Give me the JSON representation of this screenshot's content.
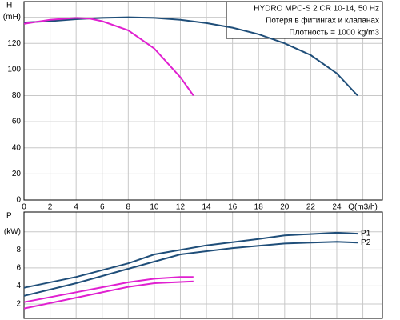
{
  "chart_data": [
    {
      "type": "line",
      "title": "HYDRO MPC-S 2 CR 10-14, 50 Hz",
      "annotations": [
        "Потеря в фитингах и клапанах",
        "Плотность = 1000 kg/m3"
      ],
      "ylabel": "H",
      "xlim": [
        0,
        27.5
      ],
      "ylim": [
        0,
        152
      ],
      "grid": true,
      "xticks": [
        0,
        2,
        4,
        6,
        8,
        10,
        12,
        14,
        16,
        18,
        20,
        22,
        24,
        {
          "value": 26,
          "label": "Q(m3/h)"
        }
      ],
      "yticks": [
        0,
        20,
        40,
        60,
        80,
        100,
        120,
        {
          "value": 140,
          "label": "(mH)"
        }
      ],
      "series": [
        {
          "color": "#1f4e79",
          "x": [
            0,
            2,
            4,
            6,
            8,
            10,
            12,
            14,
            16,
            18,
            20,
            22,
            24,
            25.6
          ],
          "values": [
            136,
            137,
            138.5,
            139.5,
            140,
            139.5,
            138,
            135.5,
            132,
            127,
            120,
            111,
            97,
            80
          ]
        },
        {
          "color": "#e020d0",
          "x": [
            0,
            2,
            4,
            5,
            6,
            8,
            10,
            12,
            13
          ],
          "values": [
            135,
            138,
            139.5,
            139,
            137,
            130,
            116,
            94,
            80
          ]
        }
      ]
    },
    {
      "type": "line",
      "ylabel": "P",
      "xlim": [
        0,
        27.5
      ],
      "ylim": [
        0.4,
        12.2
      ],
      "grid": true,
      "yticks": [
        2,
        4,
        6,
        8,
        {
          "value": 10,
          "label": "(kW)"
        }
      ],
      "series": [
        {
          "name": "P1",
          "color": "#1f4e79",
          "x": [
            0,
            4,
            8,
            10,
            14,
            18,
            20,
            24,
            25.6
          ],
          "values": [
            3.8,
            5.0,
            6.5,
            7.5,
            8.5,
            9.2,
            9.6,
            9.9,
            9.8
          ]
        },
        {
          "name": "P2",
          "color": "#1f4e79",
          "x": [
            0,
            4,
            8,
            12,
            16,
            20,
            24,
            25.6
          ],
          "values": [
            2.9,
            4.3,
            5.9,
            7.5,
            8.2,
            8.7,
            8.9,
            8.8
          ]
        },
        {
          "color": "#e020d0",
          "x": [
            0,
            4,
            8,
            10,
            12,
            13
          ],
          "values": [
            2.2,
            3.3,
            4.4,
            4.8,
            5.0,
            5.0
          ]
        },
        {
          "color": "#e020d0",
          "x": [
            0,
            4,
            8,
            10,
            13
          ],
          "values": [
            1.5,
            2.7,
            3.9,
            4.3,
            4.5
          ]
        }
      ]
    }
  ]
}
